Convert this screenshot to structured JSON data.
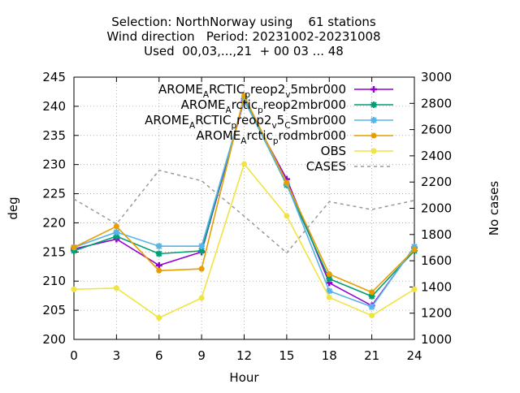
{
  "chart_data": {
    "type": "line",
    "title_lines": [
      "Selection: NorthNorway using    61 stations",
      "Wind direction   Period: 20231002-20231008",
      "Used  00,03,...,21  + 00 03 ... 48"
    ],
    "xlabel": "Hour",
    "ylabel": "deg",
    "y2label": "No cases",
    "x": [
      0,
      3,
      6,
      9,
      12,
      15,
      18,
      21,
      24
    ],
    "xlim": [
      0,
      24
    ],
    "ylim": [
      200,
      245
    ],
    "y2lim": [
      1000,
      3000
    ],
    "xticks": [
      0,
      3,
      6,
      9,
      12,
      15,
      18,
      21,
      24
    ],
    "yticks": [
      200,
      205,
      210,
      215,
      220,
      225,
      230,
      235,
      240,
      245
    ],
    "y2ticks": [
      1000,
      1200,
      1400,
      1600,
      1800,
      2000,
      2200,
      2400,
      2600,
      2800,
      3000
    ],
    "grid": true,
    "legend_position": "top-right",
    "series": [
      {
        "name": "AROME_ARCTIC_preop2_v5mbr000",
        "legend": {
          "parts": [
            "AROME",
            "A",
            "RCTIC",
            "p",
            "reop2",
            "v",
            "5mbr000"
          ]
        },
        "color": "#9400d3",
        "marker": "plus",
        "axis": "y",
        "values": [
          215.5,
          217.2,
          212.7,
          215.0,
          241.0,
          227.5,
          209.7,
          205.8,
          215.8
        ]
      },
      {
        "name": "AROME_Arctic_preop2mbr000",
        "legend": {
          "parts": [
            "AROME",
            "A",
            "rctic",
            "p",
            "reop2mbr000"
          ]
        },
        "color": "#009e73",
        "marker": "star",
        "axis": "y",
        "values": [
          215.2,
          217.7,
          214.7,
          215.2,
          241.3,
          226.5,
          210.4,
          207.4,
          215.2
        ]
      },
      {
        "name": "AROME_ARCTIC_preop2_v5_CSmbr000",
        "legend": {
          "parts": [
            "AROME",
            "A",
            "RCTIC",
            "p",
            "reop2",
            "v",
            "5",
            "C",
            "Smbr000"
          ]
        },
        "color": "#56b4e9",
        "marker": "star",
        "axis": "y",
        "values": [
          215.8,
          218.4,
          216.0,
          216.0,
          241.1,
          226.7,
          208.3,
          205.6,
          215.9
        ]
      },
      {
        "name": "AROME_Arctic_prodmbr000",
        "legend": {
          "parts": [
            "AROME",
            "A",
            "rctic",
            "p",
            "rodmbr000"
          ]
        },
        "color": "#e69f00",
        "marker": "circle",
        "axis": "y",
        "values": [
          215.8,
          219.4,
          211.8,
          212.1,
          241.8,
          226.9,
          211.2,
          208.1,
          215.4
        ]
      },
      {
        "name": "OBS",
        "legend": {
          "parts": [
            "OBS"
          ]
        },
        "color": "#f0e442",
        "marker": "circle",
        "axis": "y",
        "values": [
          208.6,
          208.8,
          203.7,
          207.1,
          230.1,
          221.2,
          207.2,
          204.1,
          208.6
        ]
      },
      {
        "name": "CASES",
        "legend": {
          "parts": [
            "CASES"
          ]
        },
        "color": "#999999",
        "marker": "none",
        "dashed": true,
        "axis": "y2",
        "values": [
          2070,
          1880,
          2290,
          2210,
          1940,
          1660,
          2050,
          1990,
          2060
        ]
      }
    ]
  }
}
